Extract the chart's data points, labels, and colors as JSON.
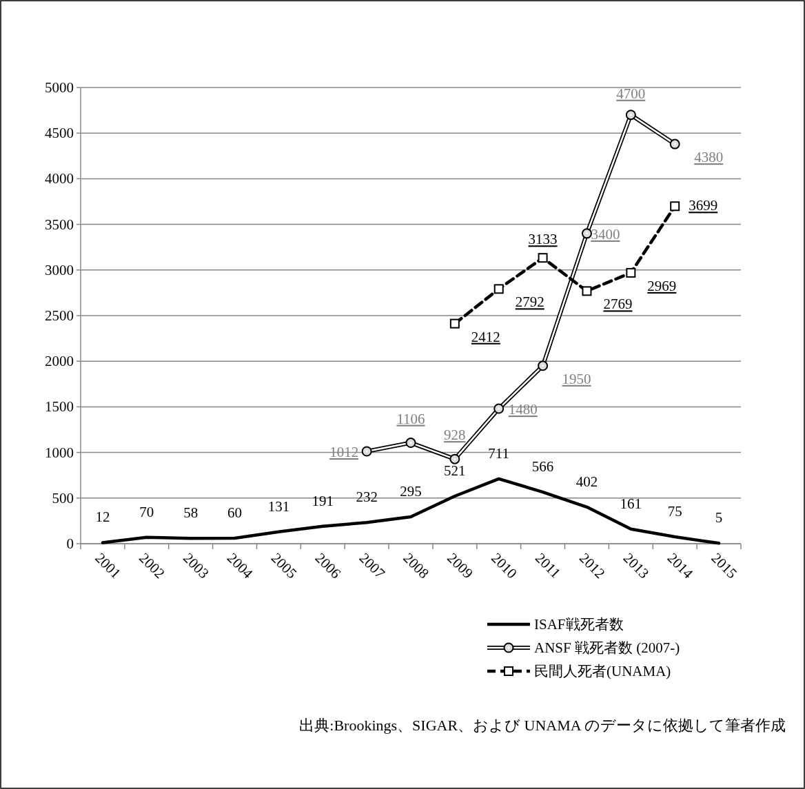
{
  "chart_data": {
    "type": "line",
    "categories": [
      "2001",
      "2002",
      "2003",
      "2004",
      "2005",
      "2006",
      "2007",
      "2008",
      "2009",
      "2010",
      "2011",
      "2012",
      "2013",
      "2014",
      "2015"
    ],
    "ylim": [
      0,
      5000
    ],
    "yticks": [
      0,
      500,
      1000,
      1500,
      2000,
      2500,
      3000,
      3500,
      4000,
      4500,
      5000
    ],
    "grid": "y",
    "legend": "bottom",
    "data_labels": true,
    "series": [
      {
        "name": "ISAF戦死者数",
        "color": "#000000",
        "line_style": "solid",
        "marker": "none",
        "values": [
          12,
          70,
          58,
          60,
          131,
          191,
          232,
          295,
          521,
          711,
          566,
          402,
          161,
          75,
          5
        ]
      },
      {
        "name": "ANSF 戦死者数 (2007-)",
        "color": "#000000",
        "line_style": "solid",
        "marker": "circle",
        "values": [
          null,
          null,
          null,
          null,
          null,
          null,
          1012,
          1106,
          928,
          1480,
          1950,
          3400,
          4700,
          4380,
          null
        ]
      },
      {
        "name": "民間人死者(UNAMA)",
        "color": "#000000",
        "line_style": "dashed",
        "marker": "square",
        "values": [
          null,
          null,
          null,
          null,
          null,
          null,
          null,
          null,
          2412,
          2792,
          3133,
          2769,
          2969,
          3699,
          null
        ]
      }
    ],
    "annotations": [
      "出典:Brookings、SIGAR、および UNAMA のデータに依拠して筆者作成"
    ]
  }
}
